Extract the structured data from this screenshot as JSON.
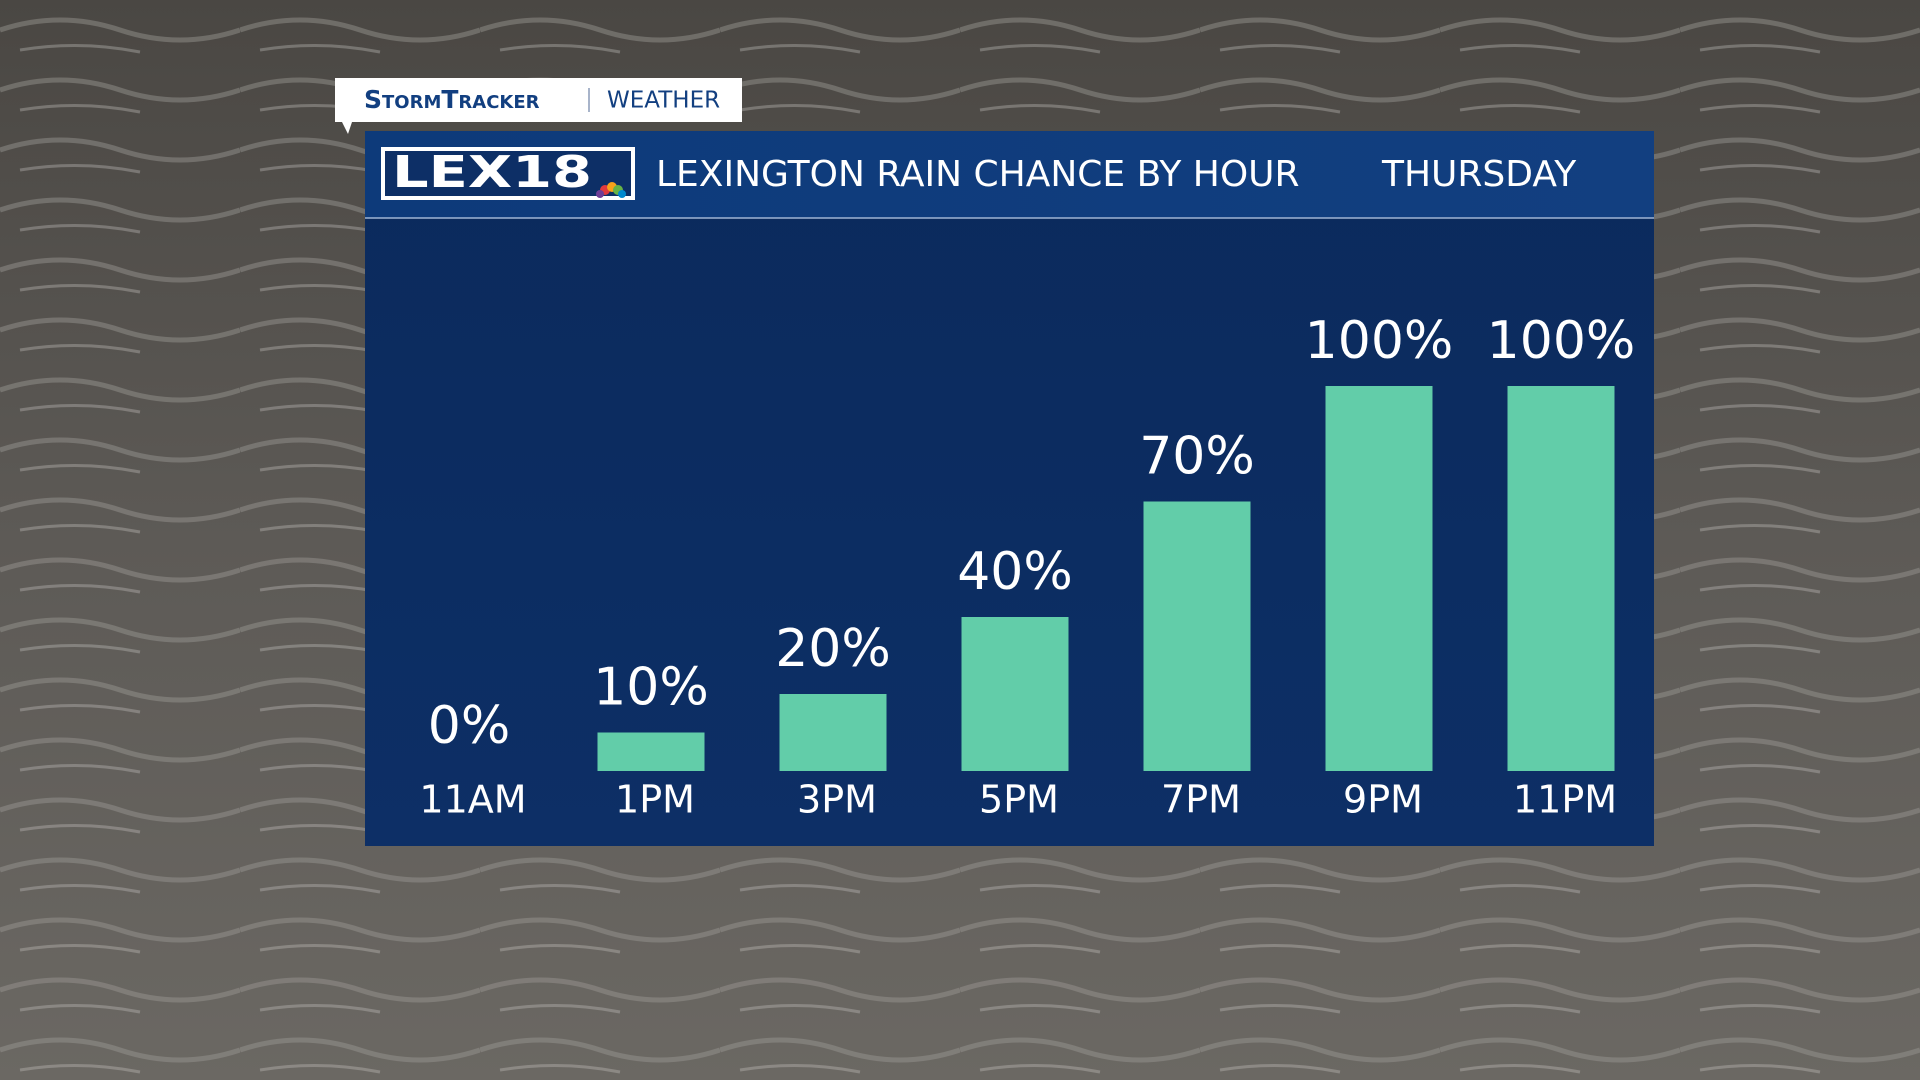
{
  "chart_data": {
    "type": "bar",
    "brand": "StormTracker",
    "section": "Weather",
    "logo": "LEX18",
    "title": "LEXINGTON RAIN CHANCE BY HOUR",
    "subtitle": "THURSDAY",
    "categories": [
      "11AM",
      "1PM",
      "3PM",
      "5PM",
      "7PM",
      "9PM",
      "11PM"
    ],
    "values": [
      0,
      10,
      20,
      40,
      70,
      100,
      100
    ],
    "value_labels": [
      "0%",
      "10%",
      "20%",
      "40%",
      "70%",
      "100%",
      "100%"
    ],
    "color": "#62cda9"
  }
}
